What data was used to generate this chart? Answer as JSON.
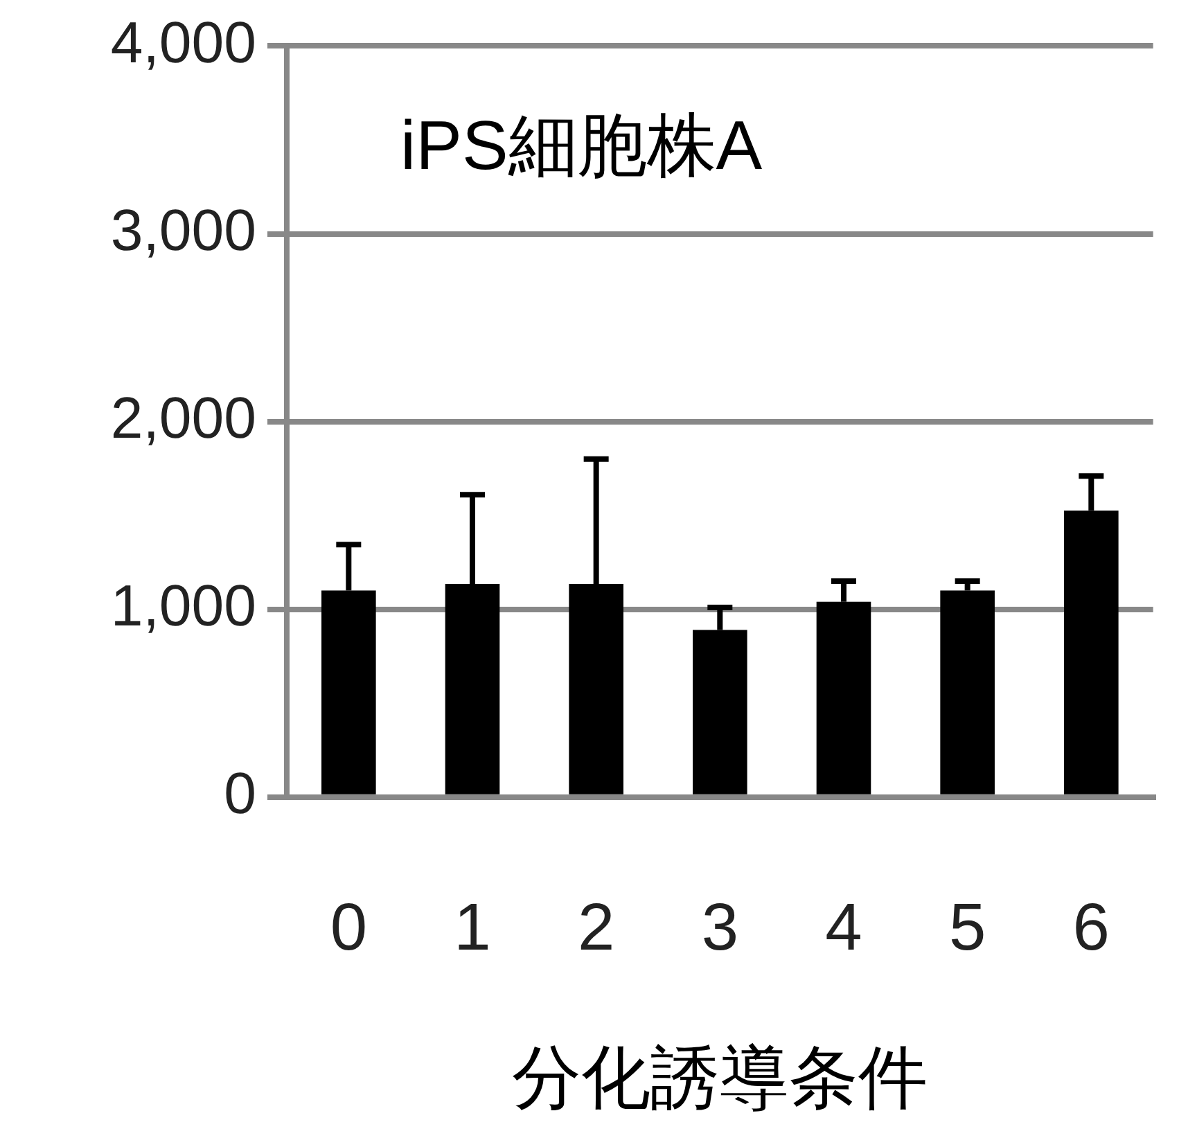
{
  "chart_data": {
    "type": "bar",
    "title": "iPS細胞株A",
    "xlabel": "分化誘導条件",
    "categories": [
      "0",
      "1",
      "2",
      "3",
      "4",
      "5",
      "6"
    ],
    "values": [
      1100,
      1135,
      1135,
      890,
      1040,
      1100,
      1525
    ],
    "errors": [
      [
        1100,
        1345
      ],
      [
        1135,
        1610
      ],
      [
        1135,
        1800
      ],
      [
        890,
        1010
      ],
      [
        1040,
        1150
      ],
      [
        1100,
        1150
      ],
      [
        1525,
        1710
      ]
    ],
    "color": "#000000",
    "ylim": [
      0,
      4000
    ],
    "yticks": [
      0,
      {
        "value": 1000,
        "label": "1,000"
      },
      {
        "value": 2000,
        "label": "2,000"
      },
      {
        "value": 3000,
        "label": "3,000"
      },
      {
        "value": 4000,
        "label": "4,000"
      }
    ],
    "grid": "y"
  }
}
